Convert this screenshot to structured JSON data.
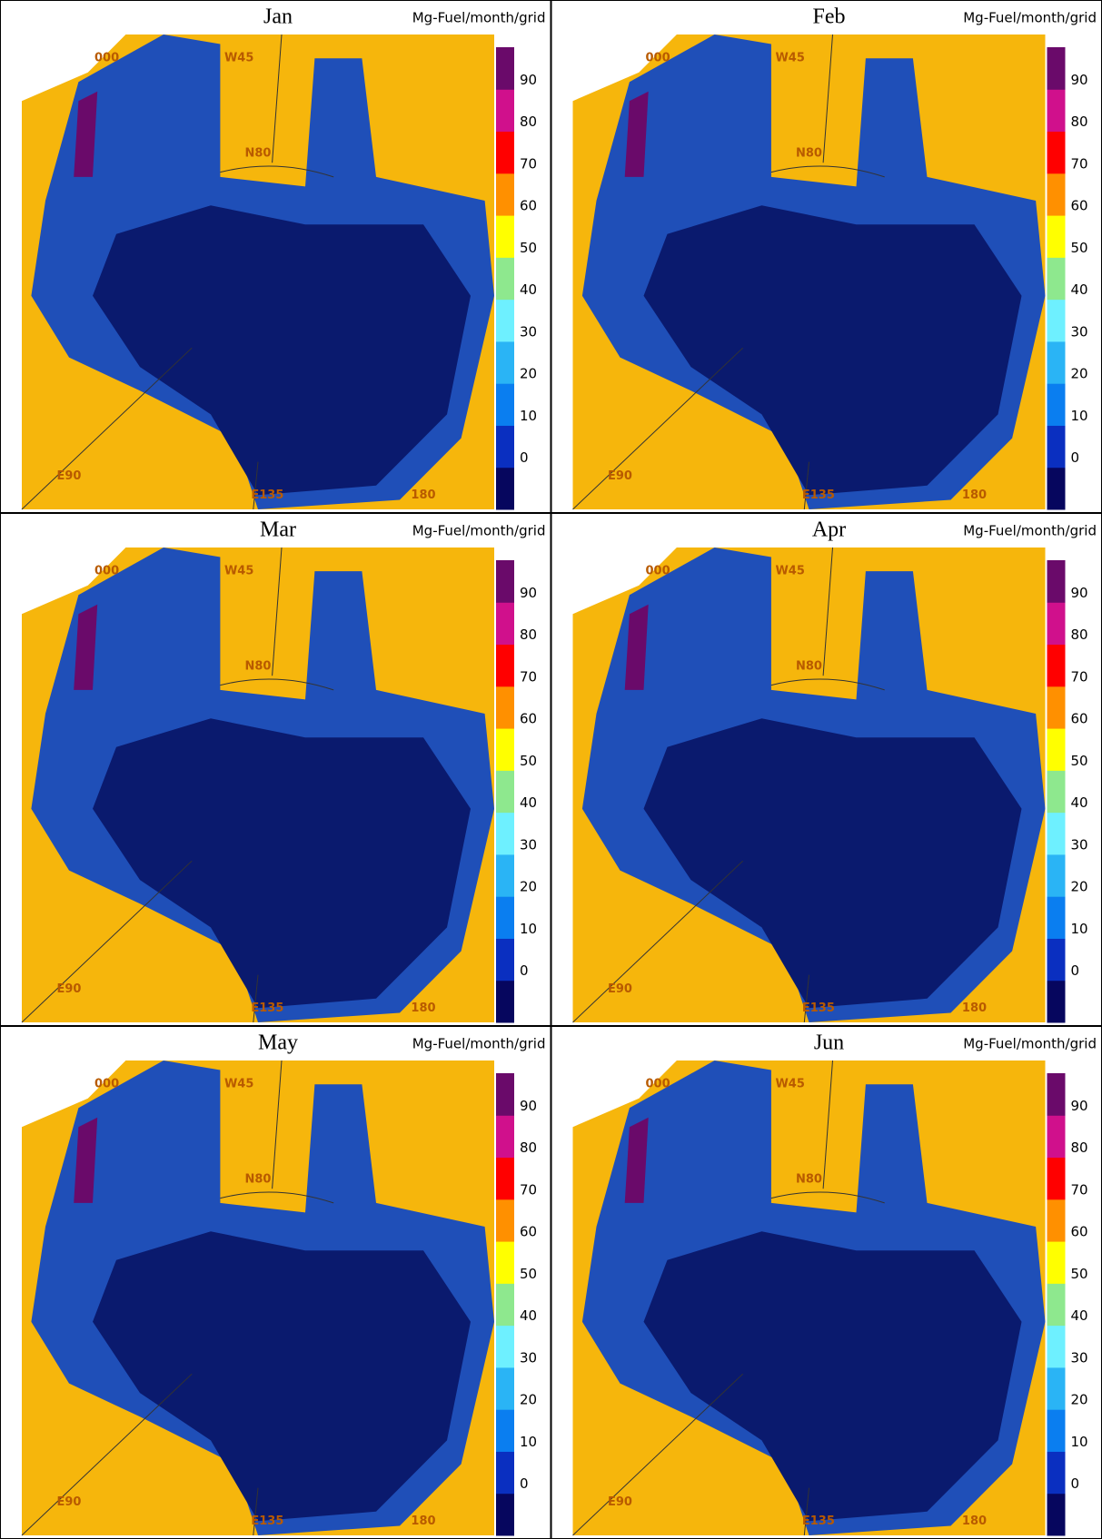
{
  "panels": [
    {
      "title": "Jan",
      "unit": "Mg-Fuel/month/grid"
    },
    {
      "title": "Feb",
      "unit": "Mg-Fuel/month/grid"
    },
    {
      "title": "Mar",
      "unit": "Mg-Fuel/month/grid"
    },
    {
      "title": "Apr",
      "unit": "Mg-Fuel/month/grid"
    },
    {
      "title": "May",
      "unit": "Mg-Fuel/month/grid"
    },
    {
      "title": "Jun",
      "unit": "Mg-Fuel/month/grid"
    }
  ],
  "map_labels": [
    "000",
    "W45",
    "N80",
    "E90",
    "E135",
    "180"
  ],
  "colorbar": {
    "ticks": [
      0,
      10,
      20,
      30,
      40,
      50,
      60,
      70,
      80,
      90
    ],
    "colors": [
      "#06065e",
      "#0a2fc0",
      "#0a7ef0",
      "#2ab4f5",
      "#6ef0ff",
      "#8ee88e",
      "#ffff00",
      "#ff9000",
      "#ff0000",
      "#d0108c",
      "#6a0a6a"
    ]
  }
}
